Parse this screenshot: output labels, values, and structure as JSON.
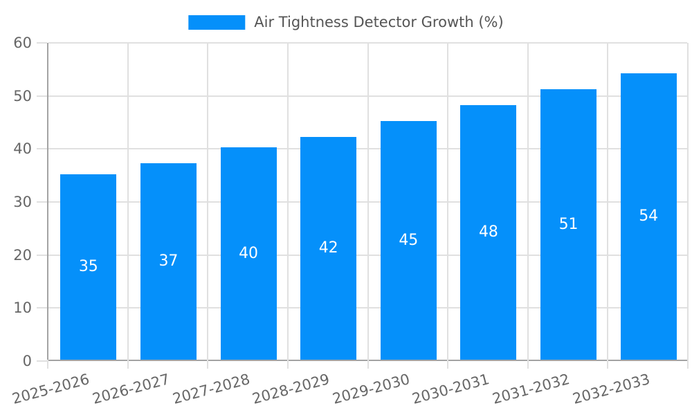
{
  "legend": {
    "label": "Air Tightness Detector Growth (%)"
  },
  "colors": {
    "bar": "#0590fa",
    "grid": "#e0e0e0",
    "axis": "#a3a3a3",
    "tick_text": "#666666",
    "legend_text": "#555555",
    "value_text": "#ffffff"
  },
  "chart_data": {
    "type": "bar",
    "title": "Air Tightness Detector Growth (%)",
    "categories": [
      "2025-2026",
      "2026-2027",
      "2027-2028",
      "2028-2029",
      "2029-2030",
      "2030-2031",
      "2031-2032",
      "2032-2033"
    ],
    "values": [
      35,
      37,
      40,
      42,
      45,
      48,
      51,
      54
    ],
    "value_labels_shown": true,
    "xlabel": "",
    "ylabel": "",
    "ylim": [
      0,
      60
    ],
    "yticks": [
      0,
      10,
      20,
      30,
      40,
      50,
      60
    ],
    "grid": true,
    "legend_position": "top-center",
    "bar_width_fraction": 0.7,
    "x_label_rotation_deg": -15
  }
}
